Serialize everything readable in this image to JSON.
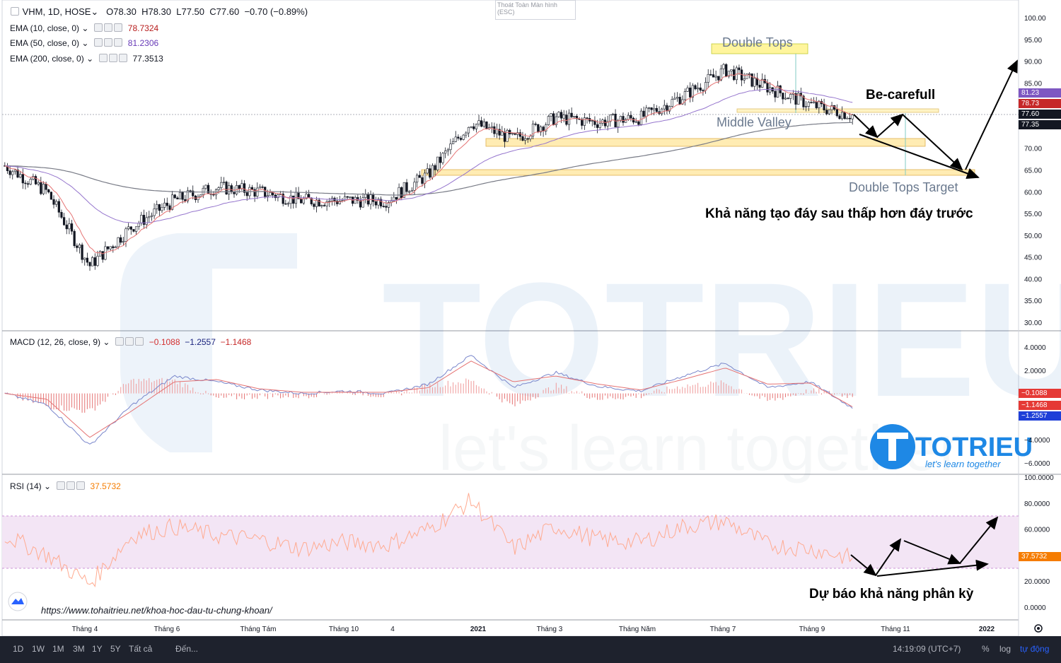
{
  "header": {
    "symbol": "VHM, 1D, HOSE",
    "o_label": "O",
    "o_value": "78.30",
    "h_label": "H",
    "h_value": "78.30",
    "l_label": "L",
    "l_value": "77.50",
    "c_label": "C",
    "c_value": "77.60",
    "change": "−0.70 (−0.89%)"
  },
  "fullscreen_exit_hint": "Thoát Toàn Màn hình (ESC)",
  "indicators": {
    "ema10": {
      "label": "EMA (10, close, 0)",
      "value": "78.7324",
      "color": "#b71c1c"
    },
    "ema50": {
      "label": "EMA (50, close, 0)",
      "value": "81.2306",
      "color": "#673ab7"
    },
    "ema200": {
      "label": "EMA (200, close, 0)",
      "value": "77.3513",
      "color": "#131722"
    },
    "macd": {
      "label": "MACD (12, 26, close, 9)",
      "hist": "−0.1088",
      "macd": "−1.2557",
      "signal": "−1.1468"
    },
    "rsi": {
      "label": "RSI (14)",
      "value": "37.5732",
      "color": "#f57c00"
    }
  },
  "price_axis": [
    "100.00",
    "95.00",
    "90.00",
    "85.00",
    "80.00",
    "75.00",
    "70.00",
    "65.00",
    "60.00",
    "55.00",
    "50.00",
    "45.00",
    "40.00",
    "35.00",
    "30.00"
  ],
  "price_tags": {
    "ema50": "81.23",
    "ema10": "78.73",
    "last": "77.60",
    "ema200": "77.35"
  },
  "macd_axis": [
    "4.0000",
    "2.0000",
    "0.0000",
    "−2.0000",
    "−4.0000",
    "−6.0000"
  ],
  "macd_tags": {
    "hist": "−0.1088",
    "signal": "−1.1468",
    "macd": "−1.2557"
  },
  "rsi_axis": [
    "100.0000",
    "80.0000",
    "60.0000",
    "40.0000",
    "20.0000",
    "0.0000"
  ],
  "rsi_tag": "37.5732",
  "time_axis": [
    "Tháng 4",
    "Tháng 6",
    "Tháng Tám",
    "Tháng 10",
    "4",
    "2021",
    "Tháng 3",
    "Tháng Năm",
    "Tháng 7",
    "Tháng 9",
    "Tháng 11",
    "2022"
  ],
  "annotations": {
    "double_tops": "Double Tops",
    "be_carefull": "Be-carefull",
    "middle_valley": "Middle Valley",
    "double_tops_target": "Double Tops Target",
    "lower_bottom": "Khả năng tạo đáy sau thấp hơn đáy trước",
    "divergence": "Dự báo khả năng phân kỳ",
    "url": "https://www.tohaitrieu.net/khoa-hoc-dau-tu-chung-khoan/"
  },
  "watermark": {
    "brand": "TOTRIEU",
    "tagline": "let's learn together"
  },
  "bottom_bar": {
    "ranges": [
      "1D",
      "1W",
      "1M",
      "3M",
      "1Y",
      "5Y",
      "Tất cả"
    ],
    "goto": "Đến...",
    "clock": "14:19:09 (UTC+7)",
    "percent": "%",
    "log": "log",
    "auto": "tự động"
  },
  "chart_data": [
    {
      "type": "candlestick",
      "title": "VHM, 1D, HOSE",
      "ylim": [
        27.5,
        102.5
      ],
      "x": [
        "2020-02",
        "2020-03",
        "2020-04",
        "2020-05",
        "2020-06",
        "2020-07",
        "2020-08",
        "2020-09",
        "2020-10",
        "2020-11",
        "2020-12",
        "2021-01",
        "2021-02",
        "2021-03",
        "2021-04",
        "2021-05",
        "2021-06",
        "2021-07",
        "2021-08",
        "2021-09",
        "2021-10"
      ],
      "close_approx": [
        66,
        60,
        43,
        52,
        58,
        61,
        60,
        58,
        58,
        58,
        64,
        76,
        72,
        77,
        76,
        77,
        82,
        88,
        84,
        80,
        77.6
      ],
      "series": [
        {
          "name": "EMA (10, close, 0)",
          "last": 78.7324
        },
        {
          "name": "EMA (50, close, 0)",
          "last": 81.2306
        },
        {
          "name": "EMA (200, close, 0)",
          "last": 77.3513
        }
      ],
      "levels": [
        {
          "label": "Double Tops",
          "value": 92.5
        },
        {
          "label": "Middle Valley",
          "value": 78.3
        },
        {
          "value": 71.0
        },
        {
          "label": "Double Tops Target",
          "value": 64.5
        }
      ]
    },
    {
      "type": "line",
      "title": "MACD (12, 26, close, 9)",
      "ylim": [
        -7,
        5
      ],
      "series": [
        {
          "name": "MACD",
          "last": -1.2557,
          "values": [
            0,
            -1,
            -4.5,
            -1,
            1.5,
            1,
            0.3,
            0,
            0.2,
            0,
            0.8,
            3.3,
            0.5,
            1.8,
            0.6,
            0.2,
            1.5,
            2.6,
            0.5,
            1.0,
            -1.25
          ]
        },
        {
          "name": "Signal",
          "last": -1.1468,
          "values": [
            0,
            -0.5,
            -3.8,
            -1.5,
            1.0,
            1.2,
            0.4,
            0.1,
            0.1,
            0.1,
            0.5,
            2.8,
            1.0,
            1.5,
            0.8,
            0.3,
            1.2,
            2.2,
            0.8,
            0.9,
            -1.15
          ]
        }
      ]
    },
    {
      "type": "line",
      "title": "RSI (14)",
      "ylim": [
        0,
        100
      ],
      "bands": [
        30,
        70
      ],
      "series": [
        {
          "name": "RSI (14)",
          "last": 37.5732,
          "values": [
            55,
            40,
            18,
            55,
            62,
            55,
            52,
            45,
            50,
            48,
            60,
            82,
            45,
            62,
            52,
            50,
            62,
            66,
            48,
            45,
            37.57
          ]
        }
      ]
    }
  ]
}
